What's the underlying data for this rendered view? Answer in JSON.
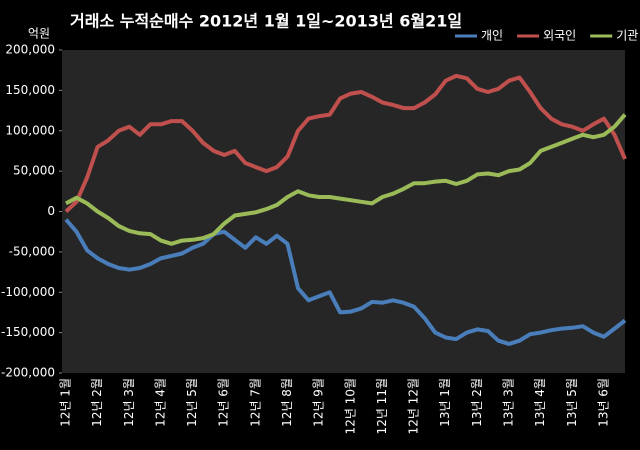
{
  "chart_data": {
    "type": "line",
    "title": "거래소 누적순매수 2012년 1월 1일~2013년 6월21일",
    "y_label": "억원",
    "legend": "top-right",
    "grid": false,
    "categories": [
      "12년 1월",
      null,
      null,
      "12년 2월",
      null,
      null,
      "12년 3월",
      null,
      null,
      "12년 4월",
      null,
      null,
      "12년 5월",
      null,
      null,
      "12년 6월",
      null,
      null,
      "12년 7월",
      null,
      null,
      "12년 8월",
      null,
      null,
      "12년 9월",
      null,
      null,
      "12년 10월",
      null,
      null,
      "12년 11월",
      null,
      null,
      "12년 12월",
      null,
      null,
      "13년 1월",
      null,
      null,
      "13년 2월",
      null,
      null,
      "13년 3월",
      null,
      null,
      "13년 4월",
      null,
      null,
      "13년 5월",
      null,
      null,
      "13년 6월",
      null,
      null
    ],
    "series": [
      {
        "name": "개인",
        "color": "#4a7ebb",
        "values": [
          -10000,
          -25000,
          -48000,
          -58000,
          -65000,
          -70000,
          -72000,
          -70000,
          -65000,
          -58000,
          -55000,
          -52000,
          -45000,
          -40000,
          -28000,
          -25000,
          -35000,
          -45000,
          -32000,
          -40000,
          -30000,
          -40000,
          -95000,
          -110000,
          -105000,
          -100000,
          -125000,
          -124000,
          -120000,
          -112000,
          -113000,
          -110000,
          -113000,
          -118000,
          -132000,
          -150000,
          -156000,
          -158000,
          -150000,
          -146000,
          -148000,
          -160000,
          -164000,
          -160000,
          -152000,
          -150000,
          -147000,
          -145000,
          -144000,
          -142000,
          -150000,
          -155000,
          -145000,
          -135000
        ]
      },
      {
        "name": "외국인",
        "color": "#c0504d",
        "values": [
          0,
          12000,
          42000,
          80000,
          88000,
          100000,
          105000,
          95000,
          108000,
          108000,
          112000,
          112000,
          100000,
          85000,
          75000,
          70000,
          75000,
          60000,
          55000,
          50000,
          55000,
          68000,
          100000,
          115000,
          118000,
          120000,
          140000,
          146000,
          148000,
          142000,
          135000,
          132000,
          128000,
          128000,
          135000,
          145000,
          162000,
          168000,
          165000,
          152000,
          148000,
          152000,
          162000,
          166000,
          148000,
          128000,
          115000,
          108000,
          105000,
          100000,
          108000,
          115000,
          95000,
          65000
        ]
      },
      {
        "name": "기관",
        "color": "#9bbb59",
        "values": [
          10000,
          17000,
          10000,
          0,
          -8000,
          -18000,
          -24000,
          -27000,
          -28000,
          -36000,
          -40000,
          -36000,
          -35000,
          -33000,
          -28000,
          -15000,
          -5000,
          -3000,
          -1000,
          3000,
          8000,
          18000,
          25000,
          20000,
          18000,
          18000,
          16000,
          14000,
          12000,
          10000,
          18000,
          22000,
          28000,
          35000,
          35000,
          37000,
          38000,
          34000,
          38000,
          46000,
          47000,
          45000,
          50000,
          52000,
          60000,
          75000,
          80000,
          85000,
          90000,
          95000,
          92000,
          95000,
          105000,
          120000
        ]
      }
    ],
    "ylim": [
      -200000,
      200000
    ],
    "yticks": [
      {
        "value": -200000,
        "label": "-200,000"
      },
      {
        "value": -150000,
        "label": "-150,000"
      },
      {
        "value": -100000,
        "label": "-100,000"
      },
      {
        "value": -50000,
        "label": "-50,000"
      },
      0,
      {
        "value": 50000,
        "label": "50,000"
      },
      {
        "value": 100000,
        "label": "100,000"
      },
      {
        "value": 150000,
        "label": "150,000"
      },
      {
        "value": 200000,
        "label": "200,000"
      }
    ]
  }
}
